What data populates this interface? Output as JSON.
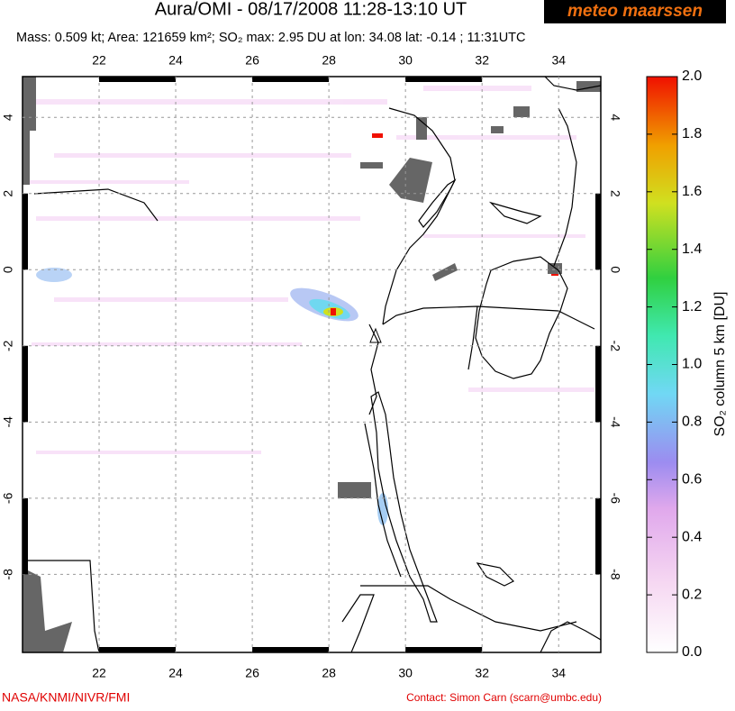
{
  "chart_data": {
    "type": "map",
    "title": "Aura/OMI - 08/17/2008 11:28-13:10 UT",
    "subtitle": "Mass: 0.509 kt; Area: 121659 km²; SO₂ max: 2.95 DU at lon: 34.08 lat: -0.14 ; 11:31UTC",
    "logo": "meteo maarssen",
    "xlim": [
      20,
      35.1
    ],
    "ylim": [
      -10.05,
      5.07
    ],
    "xticks": [
      22,
      24,
      26,
      28,
      30,
      32,
      34
    ],
    "yticks": [
      -8,
      -6,
      -4,
      -2,
      0,
      2,
      4
    ],
    "grid": true,
    "colorbar": {
      "label": "SO₂ column 5 km [DU]",
      "lim": [
        0,
        2
      ],
      "ticks": [
        {
          "value": 0,
          "label": "0.0"
        },
        {
          "value": 0.2,
          "label": "0.2"
        },
        {
          "value": 0.4,
          "label": "0.4"
        },
        {
          "value": 0.6,
          "label": "0.6"
        },
        {
          "value": 0.8,
          "label": "0.8"
        },
        {
          "value": 1,
          "label": "1.0"
        },
        {
          "value": 1.2,
          "label": "1.2"
        },
        {
          "value": 1.4,
          "label": "1.4"
        },
        {
          "value": 1.6,
          "label": "1.6"
        },
        {
          "value": 1.8,
          "label": "1.8"
        },
        {
          "value": 2,
          "label": "2.0"
        }
      ]
    },
    "credit": "NASA/KNMI/NIVR/FMI",
    "contact": "Contact: Simon Carn (scarn@umbc.edu)"
  }
}
